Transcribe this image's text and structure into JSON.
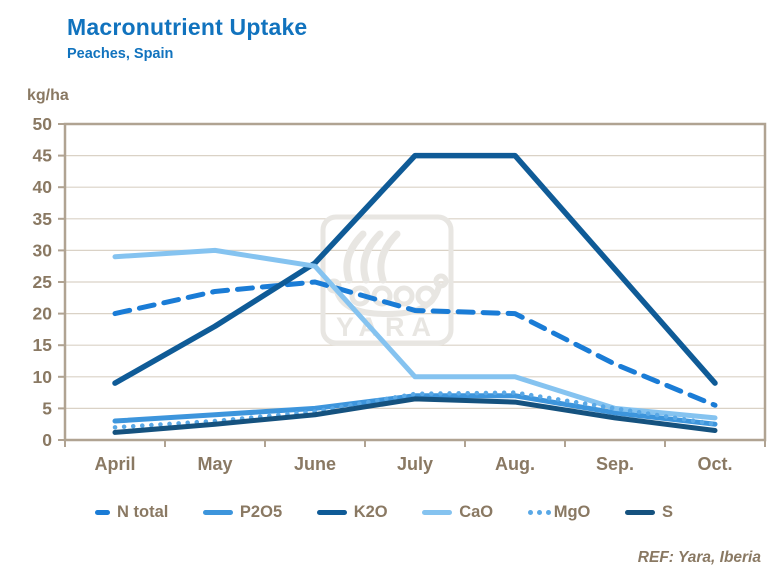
{
  "header": {
    "title": "Macronutrient Uptake",
    "subtitle": "Peaches, Spain"
  },
  "y_axis_unit_label": "kg/ha",
  "chart_data": {
    "type": "line",
    "categories": [
      "April",
      "May",
      "June",
      "July",
      "Aug.",
      "Sep.",
      "Oct."
    ],
    "ylim": [
      0,
      50
    ],
    "y_tick_step": 5,
    "grid": true,
    "legend_position": "bottom",
    "series": [
      {
        "name": "N total",
        "color": "#1A7CD6",
        "style": "dashed",
        "width": 5,
        "values": [
          20,
          23.5,
          25,
          20.5,
          20,
          12,
          5.5
        ]
      },
      {
        "name": "P2O5",
        "color": "#3D95DC",
        "style": "solid",
        "width": 5,
        "values": [
          3,
          4,
          5,
          7,
          7,
          4.3,
          2.5
        ]
      },
      {
        "name": "K2O",
        "color": "#0F5B97",
        "style": "solid",
        "width": 5.5,
        "values": [
          9,
          18,
          28,
          45,
          45,
          27,
          9
        ]
      },
      {
        "name": "CaO",
        "color": "#85C3F0",
        "style": "solid",
        "width": 5,
        "values": [
          29,
          30,
          27.5,
          10,
          10,
          5,
          3.5
        ]
      },
      {
        "name": "MgO",
        "color": "#59A8E6",
        "style": "dotted",
        "width": 4.5,
        "values": [
          2,
          3,
          4.5,
          7.3,
          7.5,
          5,
          2.5
        ]
      },
      {
        "name": "S",
        "color": "#15527F",
        "style": "solid",
        "width": 5,
        "values": [
          1.2,
          2.5,
          4,
          6.5,
          6,
          3.5,
          1.5
        ]
      }
    ]
  },
  "watermark": {
    "text": "YARA",
    "icon": "viking-ship-logo"
  },
  "ref_note": "REF: Yara, Iberia",
  "colors": {
    "title": "#1173BE",
    "axis_text": "#8A7963",
    "grid": "#DAD2C6",
    "plot_border": "#B0A392",
    "watermark": "#E8E6E2"
  }
}
